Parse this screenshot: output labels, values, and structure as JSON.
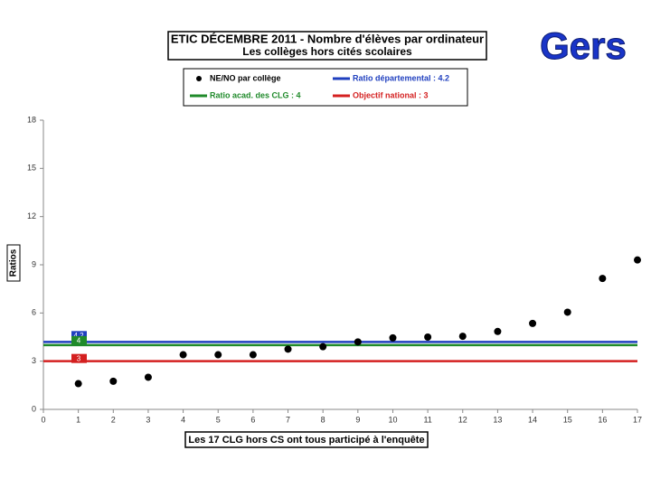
{
  "chart_data": {
    "type": "scatter",
    "title": "ETIC DÉCEMBRE 2011 - Nombre d'élèves par ordinateur",
    "subtitle": "Les collèges hors cités scolaires",
    "badge": "Gers",
    "x_label": "Les 17 CLG hors CS ont tous participé à l'enquête",
    "y_label": "Ratios",
    "x": [
      1,
      2,
      3,
      4,
      5,
      6,
      7,
      8,
      9,
      10,
      11,
      12,
      13,
      14,
      15,
      16,
      17
    ],
    "series": [
      {
        "name": "NE/NO par collège",
        "color": "#000000",
        "values": [
          1.6,
          1.75,
          2.0,
          3.4,
          3.4,
          3.4,
          3.75,
          3.9,
          4.2,
          4.45,
          4.5,
          4.55,
          4.85,
          5.35,
          6.05,
          8.15,
          9.3
        ]
      }
    ],
    "ref_lines": [
      {
        "name": "Ratio départemental : 4.2",
        "value": 4.2,
        "color": "#1f3fbf"
      },
      {
        "name": "Ratio acad. des CLG : 4",
        "value": 4,
        "color": "#1f8a2a"
      },
      {
        "name": "Objectif national : 3",
        "value": 3,
        "color": "#d42020"
      }
    ],
    "xlim": [
      0,
      17
    ],
    "ylim": [
      0,
      18
    ],
    "xticks": [
      0,
      1,
      2,
      3,
      4,
      5,
      6,
      7,
      8,
      9,
      10,
      11,
      12,
      13,
      14,
      15,
      16,
      17
    ],
    "yticks": [
      0,
      3,
      6,
      9,
      12,
      15,
      18
    ],
    "grid": false
  }
}
